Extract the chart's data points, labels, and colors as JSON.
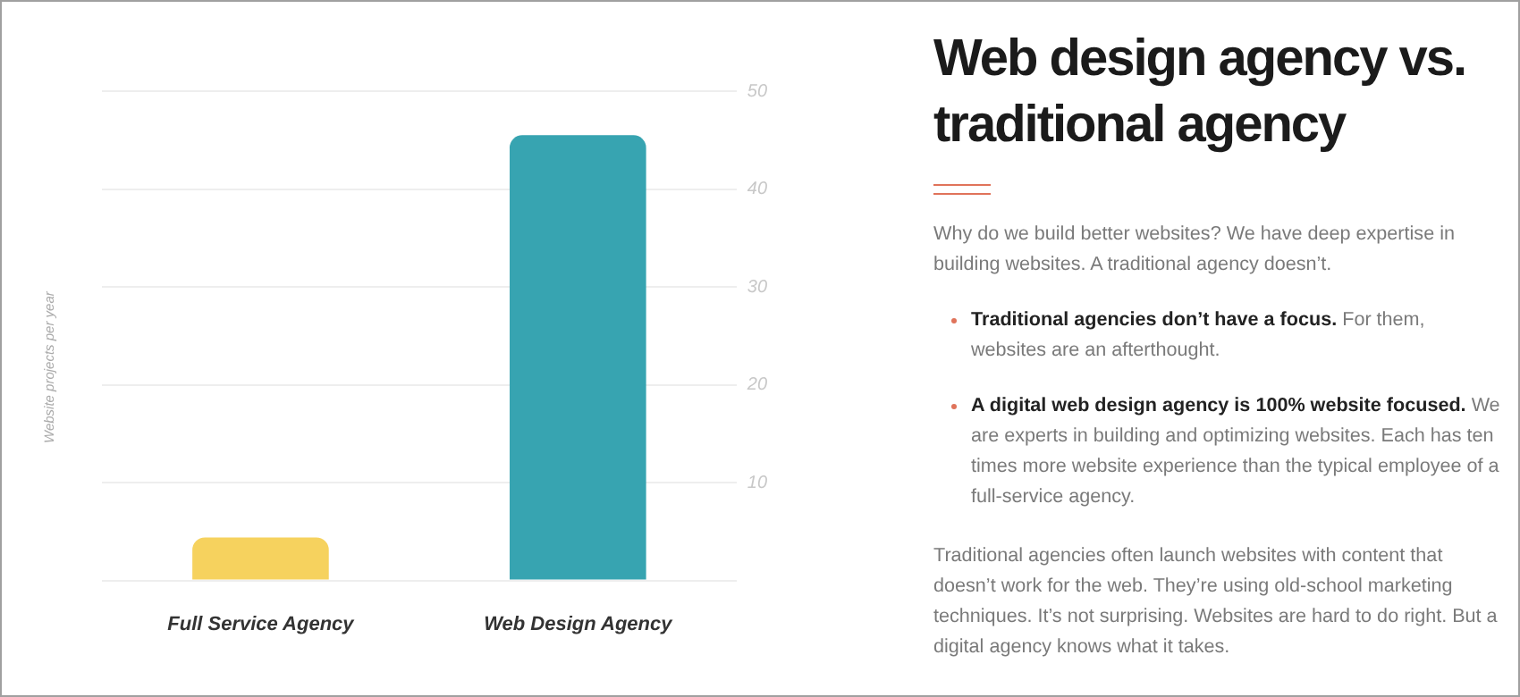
{
  "chart_data": {
    "type": "bar",
    "title": "Web design agency vs. traditional agency",
    "ylabel": "Website projects per year",
    "categories": [
      "Full Service Agency",
      "Web Design Agency"
    ],
    "values": [
      4.4,
      45.5
    ],
    "colors": [
      "#f6d25e",
      "#37a4b1"
    ],
    "ylim": [
      0,
      50
    ],
    "yticks": [
      {
        "value": 0,
        "label": null
      },
      10,
      20,
      30,
      40,
      50
    ],
    "grid": "y",
    "legend": false,
    "annotations": [
      "Why do we build better websites? We have deep expertise in building websites. A traditional agency doesn’t.",
      "Traditional agencies don’t have a focus.",
      "For them, websites are an afterthought.",
      "A digital web design agency is 100% website focused.",
      "We are experts in building and optimizing websites. Each has ten times more website experience than the typical employee of a full-service agency.",
      "Traditional agencies often launch websites with content that doesn’t work for the web. They’re using old-school marketing techniques. It’s not surprising. Websites are hard to do right. But a digital agency knows what it takes."
    ]
  }
}
